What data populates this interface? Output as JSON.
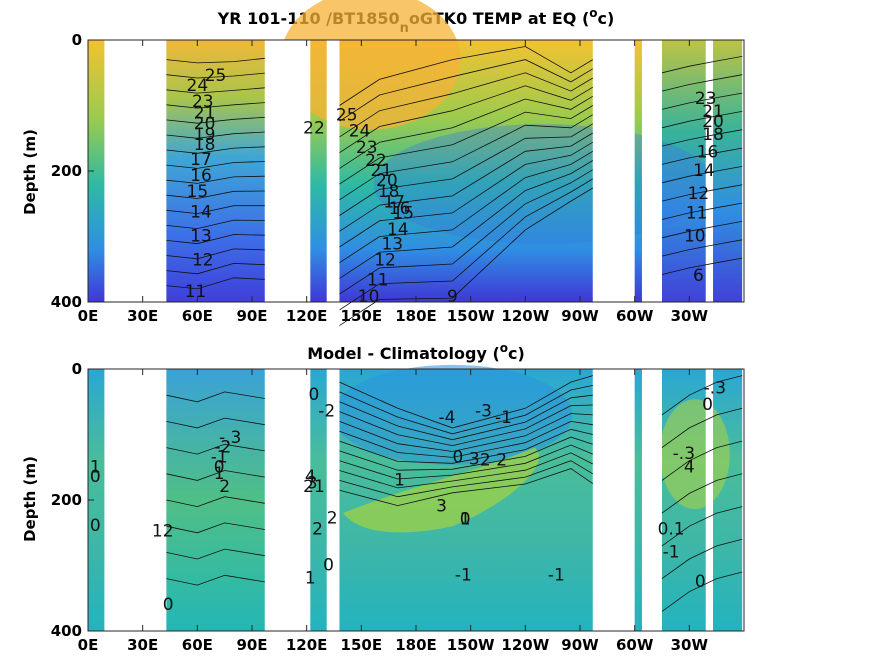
{
  "chart_data": [
    {
      "type": "heatmap",
      "title_main": "YR 101-110 /BT1850",
      "title_sub": "n",
      "title_rest": "oGTK0 TEMP at EQ (",
      "title_sup": "o",
      "title_end": "c)",
      "ylabel": "Depth (m)",
      "xlabel": "",
      "x_ticks": [
        "0E",
        "30E",
        "60E",
        "90E",
        "120E",
        "150E",
        "180E",
        "150W",
        "120W",
        "90W",
        "60W",
        "30W"
      ],
      "x_tick_lon": [
        0,
        30,
        60,
        90,
        120,
        150,
        180,
        210,
        240,
        270,
        300,
        330
      ],
      "xlim_lon": [
        0,
        360
      ],
      "y_ticks": [
        "0",
        "200",
        "400"
      ],
      "y_tick_depth": [
        0,
        200,
        400
      ],
      "ylim_depth": [
        0,
        400
      ],
      "land_lon_ranges": [
        [
          9,
          43
        ],
        [
          97,
          122
        ],
        [
          131,
          138
        ],
        [
          277,
          300
        ],
        [
          304,
          315
        ],
        [
          339,
          343
        ],
        [
          359,
          360
        ]
      ],
      "contour_labels": [
        {
          "text": "25",
          "lon": 70,
          "depth": 55
        },
        {
          "text": "24",
          "lon": 60,
          "depth": 70
        },
        {
          "text": "23",
          "lon": 63,
          "depth": 95
        },
        {
          "text": "21",
          "lon": 64,
          "depth": 112
        },
        {
          "text": "20",
          "lon": 64,
          "depth": 128
        },
        {
          "text": "19",
          "lon": 64,
          "depth": 145
        },
        {
          "text": "18",
          "lon": 64,
          "depth": 160
        },
        {
          "text": "17",
          "lon": 62,
          "depth": 183
        },
        {
          "text": "16",
          "lon": 62,
          "depth": 208
        },
        {
          "text": "15",
          "lon": 60,
          "depth": 232
        },
        {
          "text": "14",
          "lon": 62,
          "depth": 263
        },
        {
          "text": "13",
          "lon": 62,
          "depth": 300
        },
        {
          "text": "12",
          "lon": 63,
          "depth": 337
        },
        {
          "text": "11",
          "lon": 59,
          "depth": 385
        },
        {
          "text": "25",
          "lon": 142,
          "depth": 115
        },
        {
          "text": "24",
          "lon": 149,
          "depth": 140
        },
        {
          "text": "23",
          "lon": 153,
          "depth": 165
        },
        {
          "text": "22",
          "lon": 158,
          "depth": 185
        },
        {
          "text": "21",
          "lon": 161,
          "depth": 200
        },
        {
          "text": "20",
          "lon": 164,
          "depth": 215
        },
        {
          "text": "18",
          "lon": 165,
          "depth": 232
        },
        {
          "text": "17",
          "lon": 168,
          "depth": 248
        },
        {
          "text": "16",
          "lon": 171,
          "depth": 258
        },
        {
          "text": "15",
          "lon": 173,
          "depth": 265
        },
        {
          "text": "14",
          "lon": 170,
          "depth": 290
        },
        {
          "text": "13",
          "lon": 167,
          "depth": 312
        },
        {
          "text": "12",
          "lon": 163,
          "depth": 337
        },
        {
          "text": "11",
          "lon": 159,
          "depth": 367
        },
        {
          "text": "10",
          "lon": 154,
          "depth": 392
        },
        {
          "text": "9",
          "lon": 200,
          "depth": 392
        },
        {
          "text": "22",
          "lon": 124,
          "depth": 135
        },
        {
          "text": "23",
          "lon": 339,
          "depth": 90
        },
        {
          "text": "21",
          "lon": 343,
          "depth": 110
        },
        {
          "text": "20",
          "lon": 343,
          "depth": 125
        },
        {
          "text": "18",
          "lon": 343,
          "depth": 145
        },
        {
          "text": "16",
          "lon": 340,
          "depth": 172
        },
        {
          "text": "14",
          "lon": 338,
          "depth": 200
        },
        {
          "text": "12",
          "lon": 335,
          "depth": 235
        },
        {
          "text": "11",
          "lon": 334,
          "depth": 265
        },
        {
          "text": "10",
          "lon": 333,
          "depth": 300
        },
        {
          "text": "6",
          "lon": 335,
          "depth": 360
        }
      ]
    },
    {
      "type": "heatmap",
      "title_main": "Model - Climatology (",
      "title_sup": "o",
      "title_end": "c)",
      "ylabel": "Depth (m)",
      "xlabel": "",
      "x_ticks": [
        "0E",
        "30E",
        "60E",
        "90E",
        "120E",
        "150E",
        "180E",
        "150W",
        "120W",
        "90W",
        "60W",
        "30W"
      ],
      "x_tick_lon": [
        0,
        30,
        60,
        90,
        120,
        150,
        180,
        210,
        240,
        270,
        300,
        330
      ],
      "xlim_lon": [
        0,
        360
      ],
      "y_ticks": [
        "0",
        "200",
        "400"
      ],
      "y_tick_depth": [
        0,
        200,
        400
      ],
      "ylim_depth": [
        0,
        400
      ],
      "land_lon_ranges": [
        [
          9,
          43
        ],
        [
          97,
          122
        ],
        [
          131,
          138
        ],
        [
          277,
          300
        ],
        [
          304,
          315
        ],
        [
          339,
          343
        ],
        [
          359,
          360
        ]
      ],
      "contour_labels": [
        {
          "text": "-.3",
          "lon": 78,
          "depth": 105
        },
        {
          "text": "-2",
          "lon": 74,
          "depth": 120
        },
        {
          "text": "-1",
          "lon": 72,
          "depth": 135
        },
        {
          "text": "0",
          "lon": 72,
          "depth": 150
        },
        {
          "text": "1",
          "lon": 72,
          "depth": 160
        },
        {
          "text": "2",
          "lon": 75,
          "depth": 180
        },
        {
          "text": "1",
          "lon": 4,
          "depth": 150
        },
        {
          "text": "0",
          "lon": 4,
          "depth": 165
        },
        {
          "text": "0",
          "lon": 4,
          "depth": 240
        },
        {
          "text": "12",
          "lon": 41,
          "depth": 248
        },
        {
          "text": "0",
          "lon": 44,
          "depth": 360
        },
        {
          "text": "0",
          "lon": 124,
          "depth": 40
        },
        {
          "text": "-2",
          "lon": 131,
          "depth": 65
        },
        {
          "text": "4",
          "lon": 122,
          "depth": 165
        },
        {
          "text": "3",
          "lon": 123,
          "depth": 175
        },
        {
          "text": "21",
          "lon": 124,
          "depth": 180
        },
        {
          "text": "2",
          "lon": 126,
          "depth": 245
        },
        {
          "text": "2",
          "lon": 134,
          "depth": 228
        },
        {
          "text": "0",
          "lon": 132,
          "depth": 300
        },
        {
          "text": "1",
          "lon": 122,
          "depth": 320
        },
        {
          "text": "-4",
          "lon": 197,
          "depth": 75
        },
        {
          "text": "-3",
          "lon": 217,
          "depth": 65
        },
        {
          "text": "-1",
          "lon": 228,
          "depth": 75
        },
        {
          "text": "0",
          "lon": 203,
          "depth": 135
        },
        {
          "text": "3",
          "lon": 212,
          "depth": 138
        },
        {
          "text": "2",
          "lon": 218,
          "depth": 140
        },
        {
          "text": "1",
          "lon": 171,
          "depth": 170
        },
        {
          "text": "3",
          "lon": 194,
          "depth": 210
        },
        {
          "text": "2",
          "lon": 227,
          "depth": 140
        },
        {
          "text": "0",
          "lon": 207,
          "depth": 230
        },
        {
          "text": "1",
          "lon": 207,
          "depth": 230
        },
        {
          "text": "-1",
          "lon": 206,
          "depth": 315
        },
        {
          "text": "-1",
          "lon": 257,
          "depth": 315
        },
        {
          "text": "-.3",
          "lon": 344,
          "depth": 30
        },
        {
          "text": "0",
          "lon": 340,
          "depth": 55
        },
        {
          "text": "-.3",
          "lon": 327,
          "depth": 130
        },
        {
          "text": "4",
          "lon": 330,
          "depth": 150
        },
        {
          "text": "0.1",
          "lon": 320,
          "depth": 245
        },
        {
          "text": "-1",
          "lon": 320,
          "depth": 280
        },
        {
          "text": "0",
          "lon": 336,
          "depth": 325
        }
      ]
    }
  ]
}
